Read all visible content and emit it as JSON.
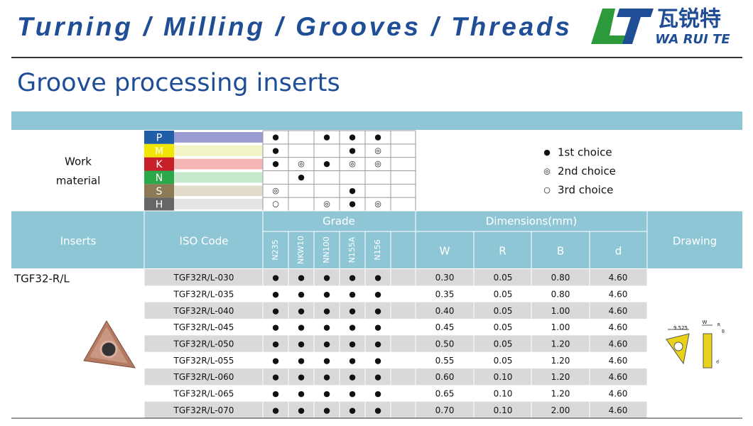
{
  "header": {
    "title": "Turning / Milling / Grooves / Threads",
    "logo_cn": "瓦锐特",
    "logo_en": "WA RUI TE"
  },
  "subtitle": "Groove processing inserts",
  "work_material": {
    "label_lines": [
      "Work",
      "material"
    ],
    "materials": [
      {
        "code": "P",
        "marks": [
          "●",
          null,
          "●",
          "●",
          "●",
          null
        ]
      },
      {
        "code": "M",
        "marks": [
          "●",
          null,
          null,
          "●",
          "◎",
          null
        ]
      },
      {
        "code": "K",
        "marks": [
          "●",
          "◎",
          "●",
          "◎",
          "◎",
          null
        ]
      },
      {
        "code": "N",
        "marks": [
          null,
          "●",
          null,
          null,
          null,
          null
        ]
      },
      {
        "code": "S",
        "marks": [
          "◎",
          null,
          null,
          "●",
          null,
          null
        ]
      },
      {
        "code": "H",
        "marks": [
          "○",
          null,
          "◎",
          "●",
          "◎",
          null
        ]
      }
    ]
  },
  "legend": [
    {
      "symbol": "●",
      "text": "1st choice"
    },
    {
      "symbol": "◎",
      "text": "2nd choice"
    },
    {
      "symbol": "○",
      "text": "3rd choice"
    }
  ],
  "table": {
    "inserts": "Inserts",
    "iso": "ISO Code",
    "grade": "Grade",
    "grades": [
      "N235",
      "NKW10",
      "NN100",
      "N155A",
      "N156"
    ],
    "dimensions": "Dimensions(mm)",
    "dims": [
      "W",
      "R",
      "B",
      "d"
    ],
    "drawing": "Drawing",
    "insert_name": "TGF32-R/L",
    "rows": [
      [
        "TGF32R/L-030",
        "●",
        "●",
        "●",
        "●",
        "●",
        "0.30",
        "0.05",
        "0.80",
        "4.60"
      ],
      [
        "TGF32R/L-035",
        "●",
        "●",
        "●",
        "●",
        "●",
        "0.35",
        "0.05",
        "0.80",
        "4.60"
      ],
      [
        "TGF32R/L-040",
        "●",
        "●",
        "●",
        "●",
        "●",
        "0.40",
        "0.05",
        "1.00",
        "4.60"
      ],
      [
        "TGF32R/L-045",
        "●",
        "●",
        "●",
        "●",
        "●",
        "0.45",
        "0.05",
        "1.00",
        "4.60"
      ],
      [
        "TGF32R/L-050",
        "●",
        "●",
        "●",
        "●",
        "●",
        "0.50",
        "0.05",
        "1.20",
        "4.60"
      ],
      [
        "TGF32R/L-055",
        "●",
        "●",
        "●",
        "●",
        "●",
        "0.55",
        "0.05",
        "1.20",
        "4.60"
      ],
      [
        "TGF32R/L-060",
        "●",
        "●",
        "●",
        "●",
        "●",
        "0.60",
        "0.10",
        "1.20",
        "4.60"
      ],
      [
        "TGF32R/L-065",
        "●",
        "●",
        "●",
        "●",
        "●",
        "0.65",
        "0.10",
        "1.20",
        "4.60"
      ],
      [
        "TGF32R/L-070",
        "●",
        "●",
        "●",
        "●",
        "●",
        "0.70",
        "0.10",
        "2.00",
        "4.60"
      ]
    ]
  },
  "drawing_labels": [
    "9.525",
    "W",
    "R",
    "B",
    "d"
  ]
}
